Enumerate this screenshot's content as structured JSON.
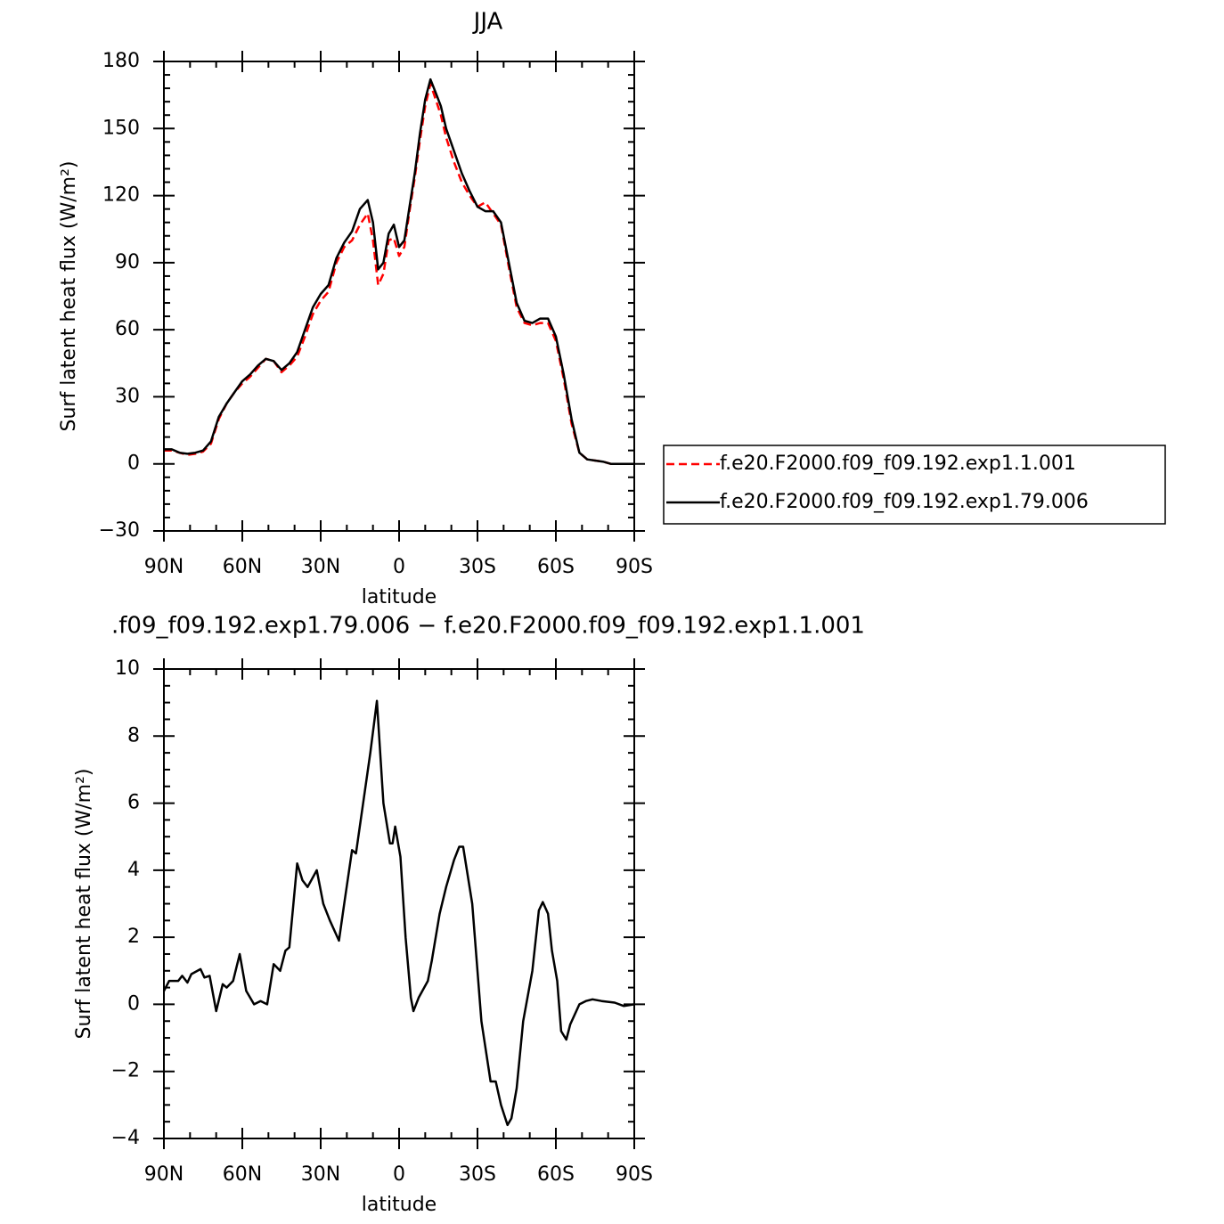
{
  "chart_data": [
    {
      "type": "line",
      "title": "JJA",
      "xlabel": "latitude",
      "ylabel": "Surf latent heat flux (W/m²)",
      "x": [
        90,
        87,
        84,
        81,
        78,
        75,
        72,
        69,
        66,
        63,
        60,
        57,
        54,
        51,
        48,
        45,
        42,
        39,
        36,
        33,
        30,
        27,
        24,
        21,
        18,
        15,
        12,
        10,
        8,
        6,
        4,
        2,
        0,
        -2,
        -4,
        -6,
        -8,
        -10,
        -12,
        -14,
        -16,
        -18,
        -21,
        -24,
        -27,
        -30,
        -33,
        -36,
        -39,
        -42,
        -45,
        -48,
        -51,
        -54,
        -57,
        -60,
        -63,
        -66,
        -69,
        -72,
        -75,
        -78,
        -81,
        -84,
        -87,
        -90
      ],
      "series": [
        {
          "name": "f.e20.F2000.f09_f09.192.exp1.1.001",
          "color": "#ff0000",
          "linestyle": "dashed",
          "values": [
            6,
            6,
            5,
            4,
            4.5,
            5.5,
            9,
            20,
            27,
            32,
            36,
            39,
            43,
            47,
            46,
            41,
            44,
            48,
            57,
            67,
            73,
            77,
            90,
            97,
            100,
            107,
            112,
            100,
            80,
            85,
            100,
            101,
            93,
            97,
            113,
            128,
            145,
            160,
            170,
            163,
            156,
            146,
            135,
            126,
            120,
            115,
            117,
            112,
            107,
            88,
            70,
            63,
            62,
            63,
            63,
            55,
            38,
            18,
            5,
            2,
            1.5,
            1,
            0,
            0,
            0,
            0
          ]
        },
        {
          "name": "f.e20.F2000.f09_f09.192.exp1.79.006",
          "color": "#000000",
          "linestyle": "solid",
          "values": [
            6.5,
            6.5,
            5,
            4.5,
            5,
            6,
            10,
            21,
            27,
            32,
            37,
            40,
            44,
            47,
            46,
            42,
            45,
            50,
            60,
            70,
            76,
            80,
            92,
            99,
            104,
            114,
            118,
            108,
            87,
            90,
            103,
            107,
            97,
            100,
            115,
            130,
            148,
            163,
            172,
            166,
            160,
            150,
            140,
            130,
            122,
            115,
            113,
            113,
            108,
            90,
            72,
            64,
            63,
            65,
            65,
            57,
            40,
            20,
            5,
            2,
            1.5,
            1,
            0,
            0,
            0,
            0
          ]
        }
      ],
      "xlim": [
        90,
        -90
      ],
      "xticks": [
        {
          "value": 90,
          "label": "90N"
        },
        {
          "value": 60,
          "label": "60N"
        },
        {
          "value": 30,
          "label": "30N"
        },
        0,
        {
          "value": -30,
          "label": "30S"
        },
        {
          "value": -60,
          "label": "60S"
        },
        {
          "value": -90,
          "label": "90S"
        }
      ],
      "ylim": [
        -30,
        180
      ],
      "yticks": [
        {
          "value": -30,
          "label": "−30"
        },
        0,
        30,
        60,
        90,
        120,
        150,
        180
      ],
      "legend": "right"
    },
    {
      "type": "line",
      "title": ".f09_f09.192.exp1.79.006 − f.e20.F2000.f09_f09.192.exp1.1.001",
      "xlabel": "latitude",
      "ylabel": "Surf latent heat flux (W/m²)",
      "x": [
        90,
        88,
        84.5,
        83,
        81,
        79.5,
        76,
        74.5,
        72.5,
        70,
        67.5,
        66,
        63.5,
        61,
        58.5,
        55.5,
        53,
        50.5,
        48,
        45.5,
        43.5,
        42,
        39,
        37,
        35,
        31.5,
        29,
        26.5,
        23,
        21,
        18,
        16.5,
        14.5,
        11,
        8.5,
        6,
        3.5,
        2.5,
        1.5,
        -0.5,
        -2.5,
        -4.5,
        -5.5,
        -7.5,
        -11,
        -12.5,
        -15.5,
        -18,
        -21,
        -23,
        -24.5,
        -28,
        -31.5,
        -35,
        -37,
        -39,
        -41.5,
        -43,
        -45,
        -47.5,
        -51,
        -53.5,
        -55,
        -57,
        -58.5,
        -60.5,
        -62,
        -64,
        -65.5,
        -69,
        -71.5,
        -74,
        -77.5,
        -82.5,
        -86,
        -90
      ],
      "values": [
        0.4,
        0.7,
        0.7,
        0.85,
        0.65,
        0.9,
        1.05,
        0.8,
        0.85,
        -0.2,
        0.6,
        0.5,
        0.7,
        1.5,
        0.4,
        0,
        0.1,
        0,
        1.2,
        1,
        1.6,
        1.7,
        4.2,
        3.7,
        3.5,
        4,
        3,
        2.5,
        1.9,
        3,
        4.6,
        4.5,
        5.6,
        7.5,
        9.05,
        6,
        4.8,
        4.8,
        5.3,
        4.4,
        2,
        0.2,
        -0.2,
        0.2,
        0.7,
        1.3,
        2.7,
        3.5,
        4.3,
        4.7,
        4.7,
        3,
        -0.5,
        -2.3,
        -2.3,
        -3,
        -3.6,
        -3.4,
        -2.5,
        -0.5,
        1,
        2.8,
        3.05,
        2.7,
        1.6,
        0.7,
        -0.8,
        -1.05,
        -0.6,
        0,
        0.1,
        0.15,
        0.1,
        0.05,
        -0.05,
        0
      ],
      "color": "#000000",
      "xlim": [
        90,
        -90
      ],
      "xticks": [
        {
          "value": 90,
          "label": "90N"
        },
        {
          "value": 60,
          "label": "60N"
        },
        {
          "value": 30,
          "label": "30N"
        },
        0,
        {
          "value": -30,
          "label": "30S"
        },
        {
          "value": -60,
          "label": "60S"
        },
        {
          "value": -90,
          "label": "90S"
        }
      ],
      "ylim": [
        -4,
        10
      ],
      "yticks": [
        {
          "value": -4,
          "label": "−4"
        },
        {
          "value": -2,
          "label": "−2"
        },
        0,
        2,
        4,
        6,
        8,
        10
      ]
    }
  ]
}
